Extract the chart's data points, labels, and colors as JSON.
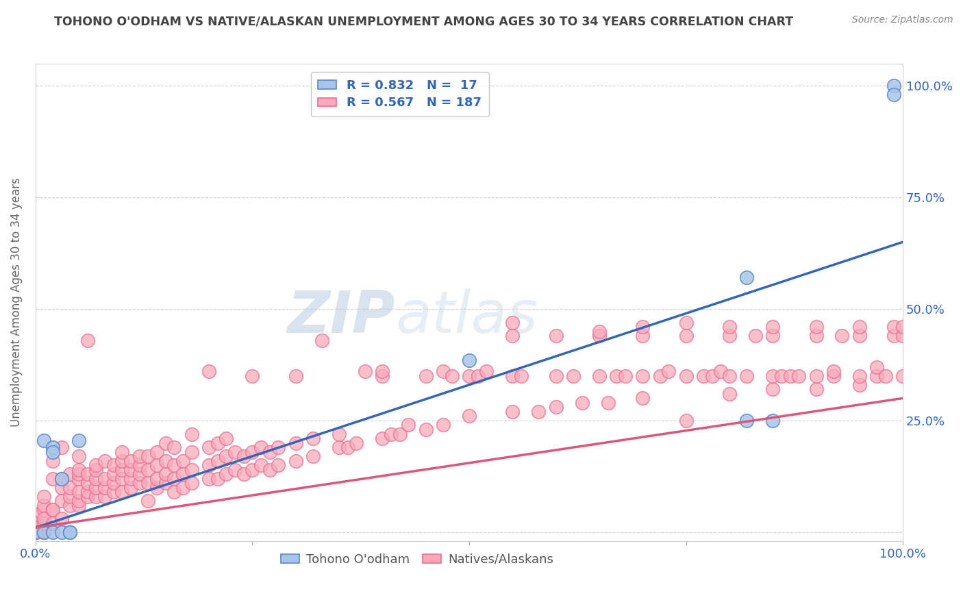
{
  "title": "TOHONO O'ODHAM VS NATIVE/ALASKAN UNEMPLOYMENT AMONG AGES 30 TO 34 YEARS CORRELATION CHART",
  "source": "Source: ZipAtlas.com",
  "ylabel": "Unemployment Among Ages 30 to 34 years",
  "xlim": [
    0.0,
    1.0
  ],
  "ylim": [
    -0.02,
    1.05
  ],
  "blue_scatter_color": "#AAC4E8",
  "blue_edge_color": "#5588CC",
  "pink_scatter_color": "#F8AABB",
  "pink_edge_color": "#E87090",
  "blue_line_color": "#3366BB",
  "pink_line_color": "#DD5577",
  "legend_r1": "R = 0.832",
  "legend_n1": "N =  17",
  "legend_r2": "R = 0.567",
  "legend_n2": "N = 187",
  "legend_text_color": "#3366BB",
  "watermark_zip": "ZIP",
  "watermark_atlas": "atlas",
  "background_color": "#FFFFFF",
  "grid_color": "#CCCCCC",
  "title_color": "#444444",
  "axis_label_color": "#3366BB",
  "blue_trend_x": [
    0.0,
    1.0
  ],
  "blue_trend_y": [
    0.01,
    0.65
  ],
  "pink_trend_x": [
    0.0,
    1.0
  ],
  "pink_trend_y": [
    0.01,
    0.3
  ],
  "tohono_points": [
    [
      0.0,
      0.0
    ],
    [
      0.01,
      0.0
    ],
    [
      0.01,
      0.205
    ],
    [
      0.02,
      0.19
    ],
    [
      0.02,
      0.18
    ],
    [
      0.02,
      0.0
    ],
    [
      0.03,
      0.12
    ],
    [
      0.03,
      0.0
    ],
    [
      0.04,
      0.0
    ],
    [
      0.04,
      0.0
    ],
    [
      0.05,
      0.205
    ],
    [
      0.5,
      0.385
    ],
    [
      0.82,
      0.57
    ],
    [
      0.82,
      0.25
    ],
    [
      0.85,
      0.25
    ],
    [
      0.99,
      1.0
    ],
    [
      0.99,
      0.98
    ]
  ],
  "native_points": [
    [
      0.0,
      0.0
    ],
    [
      0.0,
      0.0
    ],
    [
      0.0,
      0.04
    ],
    [
      0.0,
      0.02
    ],
    [
      0.0,
      0.01
    ],
    [
      0.01,
      0.0
    ],
    [
      0.01,
      0.05
    ],
    [
      0.01,
      0.06
    ],
    [
      0.01,
      0.08
    ],
    [
      0.01,
      0.0
    ],
    [
      0.01,
      0.02
    ],
    [
      0.01,
      0.03
    ],
    [
      0.02,
      0.02
    ],
    [
      0.02,
      0.12
    ],
    [
      0.02,
      0.05
    ],
    [
      0.02,
      0.16
    ],
    [
      0.02,
      0.05
    ],
    [
      0.03,
      0.07
    ],
    [
      0.03,
      0.03
    ],
    [
      0.03,
      0.19
    ],
    [
      0.03,
      0.1
    ],
    [
      0.03,
      0.12
    ],
    [
      0.04,
      0.06
    ],
    [
      0.04,
      0.08
    ],
    [
      0.04,
      0.1
    ],
    [
      0.04,
      0.13
    ],
    [
      0.05,
      0.06
    ],
    [
      0.05,
      0.07
    ],
    [
      0.05,
      0.09
    ],
    [
      0.05,
      0.12
    ],
    [
      0.05,
      0.13
    ],
    [
      0.05,
      0.14
    ],
    [
      0.05,
      0.17
    ],
    [
      0.06,
      0.08
    ],
    [
      0.06,
      0.09
    ],
    [
      0.06,
      0.11
    ],
    [
      0.06,
      0.13
    ],
    [
      0.06,
      0.43
    ],
    [
      0.07,
      0.08
    ],
    [
      0.07,
      0.1
    ],
    [
      0.07,
      0.12
    ],
    [
      0.07,
      0.14
    ],
    [
      0.07,
      0.15
    ],
    [
      0.08,
      0.08
    ],
    [
      0.08,
      0.1
    ],
    [
      0.08,
      0.12
    ],
    [
      0.08,
      0.16
    ],
    [
      0.09,
      0.09
    ],
    [
      0.09,
      0.11
    ],
    [
      0.09,
      0.13
    ],
    [
      0.09,
      0.15
    ],
    [
      0.1,
      0.09
    ],
    [
      0.1,
      0.12
    ],
    [
      0.1,
      0.14
    ],
    [
      0.1,
      0.16
    ],
    [
      0.1,
      0.18
    ],
    [
      0.11,
      0.1
    ],
    [
      0.11,
      0.12
    ],
    [
      0.11,
      0.14
    ],
    [
      0.11,
      0.16
    ],
    [
      0.12,
      0.11
    ],
    [
      0.12,
      0.13
    ],
    [
      0.12,
      0.15
    ],
    [
      0.12,
      0.17
    ],
    [
      0.13,
      0.07
    ],
    [
      0.13,
      0.11
    ],
    [
      0.13,
      0.14
    ],
    [
      0.13,
      0.17
    ],
    [
      0.14,
      0.1
    ],
    [
      0.14,
      0.12
    ],
    [
      0.14,
      0.15
    ],
    [
      0.14,
      0.18
    ],
    [
      0.15,
      0.11
    ],
    [
      0.15,
      0.13
    ],
    [
      0.15,
      0.16
    ],
    [
      0.15,
      0.2
    ],
    [
      0.16,
      0.09
    ],
    [
      0.16,
      0.12
    ],
    [
      0.16,
      0.15
    ],
    [
      0.16,
      0.19
    ],
    [
      0.17,
      0.1
    ],
    [
      0.17,
      0.13
    ],
    [
      0.17,
      0.16
    ],
    [
      0.18,
      0.11
    ],
    [
      0.18,
      0.14
    ],
    [
      0.18,
      0.18
    ],
    [
      0.18,
      0.22
    ],
    [
      0.2,
      0.12
    ],
    [
      0.2,
      0.15
    ],
    [
      0.2,
      0.19
    ],
    [
      0.2,
      0.36
    ],
    [
      0.21,
      0.12
    ],
    [
      0.21,
      0.16
    ],
    [
      0.21,
      0.2
    ],
    [
      0.22,
      0.13
    ],
    [
      0.22,
      0.17
    ],
    [
      0.22,
      0.21
    ],
    [
      0.23,
      0.14
    ],
    [
      0.23,
      0.18
    ],
    [
      0.24,
      0.13
    ],
    [
      0.24,
      0.17
    ],
    [
      0.25,
      0.14
    ],
    [
      0.25,
      0.18
    ],
    [
      0.25,
      0.35
    ],
    [
      0.26,
      0.15
    ],
    [
      0.26,
      0.19
    ],
    [
      0.27,
      0.14
    ],
    [
      0.27,
      0.18
    ],
    [
      0.28,
      0.15
    ],
    [
      0.28,
      0.19
    ],
    [
      0.3,
      0.16
    ],
    [
      0.3,
      0.2
    ],
    [
      0.3,
      0.35
    ],
    [
      0.32,
      0.17
    ],
    [
      0.32,
      0.21
    ],
    [
      0.33,
      0.43
    ],
    [
      0.35,
      0.19
    ],
    [
      0.35,
      0.22
    ],
    [
      0.36,
      0.19
    ],
    [
      0.37,
      0.2
    ],
    [
      0.38,
      0.36
    ],
    [
      0.4,
      0.21
    ],
    [
      0.4,
      0.35
    ],
    [
      0.4,
      0.36
    ],
    [
      0.41,
      0.22
    ],
    [
      0.42,
      0.22
    ],
    [
      0.43,
      0.24
    ],
    [
      0.45,
      0.23
    ],
    [
      0.45,
      0.35
    ],
    [
      0.47,
      0.24
    ],
    [
      0.47,
      0.36
    ],
    [
      0.48,
      0.35
    ],
    [
      0.5,
      0.26
    ],
    [
      0.5,
      0.35
    ],
    [
      0.51,
      0.35
    ],
    [
      0.52,
      0.36
    ],
    [
      0.55,
      0.27
    ],
    [
      0.55,
      0.35
    ],
    [
      0.55,
      0.44
    ],
    [
      0.55,
      0.47
    ],
    [
      0.56,
      0.35
    ],
    [
      0.58,
      0.27
    ],
    [
      0.6,
      0.28
    ],
    [
      0.6,
      0.35
    ],
    [
      0.6,
      0.44
    ],
    [
      0.62,
      0.35
    ],
    [
      0.63,
      0.29
    ],
    [
      0.65,
      0.35
    ],
    [
      0.65,
      0.44
    ],
    [
      0.65,
      0.45
    ],
    [
      0.66,
      0.29
    ],
    [
      0.67,
      0.35
    ],
    [
      0.68,
      0.35
    ],
    [
      0.7,
      0.3
    ],
    [
      0.7,
      0.35
    ],
    [
      0.7,
      0.44
    ],
    [
      0.7,
      0.46
    ],
    [
      0.72,
      0.35
    ],
    [
      0.73,
      0.36
    ],
    [
      0.75,
      0.25
    ],
    [
      0.75,
      0.35
    ],
    [
      0.75,
      0.44
    ],
    [
      0.75,
      0.47
    ],
    [
      0.77,
      0.35
    ],
    [
      0.78,
      0.35
    ],
    [
      0.79,
      0.36
    ],
    [
      0.8,
      0.31
    ],
    [
      0.8,
      0.35
    ],
    [
      0.8,
      0.44
    ],
    [
      0.8,
      0.46
    ],
    [
      0.82,
      0.35
    ],
    [
      0.83,
      0.44
    ],
    [
      0.85,
      0.32
    ],
    [
      0.85,
      0.35
    ],
    [
      0.85,
      0.44
    ],
    [
      0.85,
      0.46
    ],
    [
      0.86,
      0.35
    ],
    [
      0.87,
      0.35
    ],
    [
      0.88,
      0.35
    ],
    [
      0.9,
      0.32
    ],
    [
      0.9,
      0.35
    ],
    [
      0.9,
      0.44
    ],
    [
      0.9,
      0.46
    ],
    [
      0.92,
      0.35
    ],
    [
      0.92,
      0.36
    ],
    [
      0.93,
      0.44
    ],
    [
      0.95,
      0.33
    ],
    [
      0.95,
      0.35
    ],
    [
      0.95,
      0.44
    ],
    [
      0.95,
      0.46
    ],
    [
      0.97,
      0.35
    ],
    [
      0.97,
      0.37
    ],
    [
      0.98,
      0.35
    ],
    [
      0.99,
      0.44
    ],
    [
      0.99,
      0.46
    ],
    [
      1.0,
      0.35
    ],
    [
      1.0,
      0.44
    ],
    [
      1.0,
      0.46
    ]
  ]
}
